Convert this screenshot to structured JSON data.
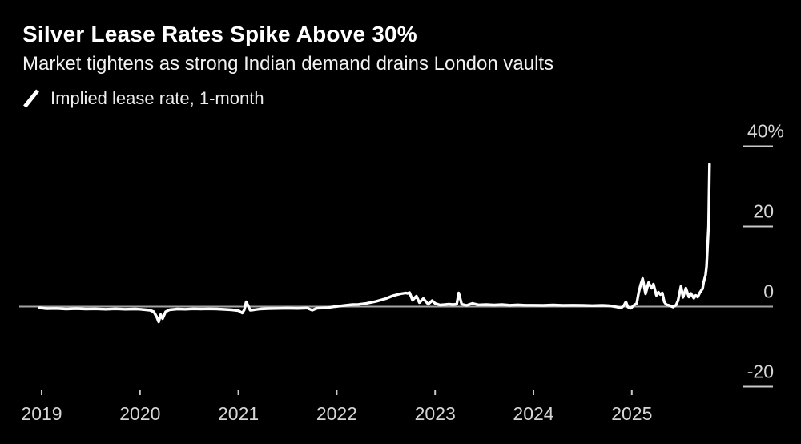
{
  "header": {
    "title": "Silver Lease Rates Spike Above 30%",
    "subtitle": "Market tightens as strong Indian demand drains London vaults",
    "legend": {
      "label": "Implied lease rate, 1-month",
      "series_color": "#ffffff"
    }
  },
  "colors": {
    "background": "#000000",
    "title_text": "#ffffff",
    "subtitle_text": "#f2f2f2",
    "legend_text": "#ededed",
    "axis_label": "#d6d6d6",
    "tick_line": "#c9c9c9",
    "zero_line": "#a3a3a3",
    "series_line": "#ffffff"
  },
  "chart_data": {
    "type": "line",
    "title": "Silver Lease Rates Spike Above 30%",
    "subtitle": "Market tightens as strong Indian demand drains London vaults",
    "unit": "%",
    "grid": false,
    "legend_position": "top-left",
    "axis_side": "right",
    "x_domain": [
      2018.95,
      2025.85
    ],
    "y_domain": [
      -24,
      44
    ],
    "zero_baseline": true,
    "x_axis": {
      "ticks": [
        {
          "value": 2019,
          "label": "2019"
        },
        {
          "value": 2020,
          "label": "2020"
        },
        {
          "value": 2021,
          "label": "2021"
        },
        {
          "value": 2022,
          "label": "2022"
        },
        {
          "value": 2023,
          "label": "2023"
        },
        {
          "value": 2024,
          "label": "2024"
        },
        {
          "value": 2025,
          "label": "2025"
        }
      ]
    },
    "y_axis": {
      "ticks": [
        {
          "value": 40,
          "label": "40%"
        },
        {
          "value": 20,
          "label": "20"
        },
        {
          "value": 0,
          "label": "0"
        },
        {
          "value": -20,
          "label": "-20"
        }
      ]
    },
    "series": [
      {
        "name": "Implied lease rate, 1-month",
        "color": "#ffffff",
        "points": [
          [
            2018.98,
            -0.3
          ],
          [
            2019.05,
            -0.5
          ],
          [
            2019.15,
            -0.45
          ],
          [
            2019.25,
            -0.6
          ],
          [
            2019.35,
            -0.5
          ],
          [
            2019.45,
            -0.6
          ],
          [
            2019.55,
            -0.55
          ],
          [
            2019.65,
            -0.65
          ],
          [
            2019.75,
            -0.55
          ],
          [
            2019.85,
            -0.65
          ],
          [
            2019.95,
            -0.6
          ],
          [
            2020.0,
            -0.65
          ],
          [
            2020.06,
            -0.8
          ],
          [
            2020.1,
            -0.9
          ],
          [
            2020.14,
            -1.3
          ],
          [
            2020.17,
            -2.6
          ],
          [
            2020.19,
            -3.8
          ],
          [
            2020.21,
            -2.0
          ],
          [
            2020.23,
            -3.0
          ],
          [
            2020.26,
            -1.3
          ],
          [
            2020.3,
            -0.8
          ],
          [
            2020.38,
            -0.6
          ],
          [
            2020.46,
            -0.65
          ],
          [
            2020.54,
            -0.55
          ],
          [
            2020.62,
            -0.6
          ],
          [
            2020.7,
            -0.55
          ],
          [
            2020.78,
            -0.6
          ],
          [
            2020.86,
            -0.7
          ],
          [
            2020.93,
            -0.8
          ],
          [
            2021.0,
            -1.0
          ],
          [
            2021.04,
            -1.6
          ],
          [
            2021.06,
            -0.8
          ],
          [
            2021.08,
            1.2
          ],
          [
            2021.1,
            0.2
          ],
          [
            2021.12,
            -0.9
          ],
          [
            2021.16,
            -0.8
          ],
          [
            2021.22,
            -0.6
          ],
          [
            2021.3,
            -0.5
          ],
          [
            2021.4,
            -0.45
          ],
          [
            2021.5,
            -0.4
          ],
          [
            2021.6,
            -0.45
          ],
          [
            2021.7,
            -0.35
          ],
          [
            2021.75,
            -0.9
          ],
          [
            2021.8,
            -0.4
          ],
          [
            2021.9,
            -0.3
          ],
          [
            2021.98,
            0.0
          ],
          [
            2022.08,
            0.3
          ],
          [
            2022.16,
            0.5
          ],
          [
            2022.22,
            0.55
          ],
          [
            2022.3,
            0.8
          ],
          [
            2022.4,
            1.3
          ],
          [
            2022.5,
            2.0
          ],
          [
            2022.57,
            2.7
          ],
          [
            2022.65,
            3.2
          ],
          [
            2022.7,
            3.4
          ],
          [
            2022.72,
            3.3
          ],
          [
            2022.74,
            3.5
          ],
          [
            2022.77,
            1.6
          ],
          [
            2022.81,
            2.6
          ],
          [
            2022.84,
            1.0
          ],
          [
            2022.88,
            2.0
          ],
          [
            2022.93,
            0.6
          ],
          [
            2022.97,
            1.5
          ],
          [
            2023.0,
            0.8
          ],
          [
            2023.05,
            0.4
          ],
          [
            2023.1,
            0.5
          ],
          [
            2023.14,
            0.6
          ],
          [
            2023.18,
            0.5
          ],
          [
            2023.22,
            0.6
          ],
          [
            2023.24,
            3.4
          ],
          [
            2023.27,
            0.6
          ],
          [
            2023.32,
            0.3
          ],
          [
            2023.38,
            0.8
          ],
          [
            2023.44,
            0.45
          ],
          [
            2023.52,
            0.5
          ],
          [
            2023.6,
            0.4
          ],
          [
            2023.68,
            0.5
          ],
          [
            2023.76,
            0.35
          ],
          [
            2023.84,
            0.45
          ],
          [
            2023.92,
            0.35
          ],
          [
            2024.0,
            0.35
          ],
          [
            2024.1,
            0.3
          ],
          [
            2024.2,
            0.4
          ],
          [
            2024.3,
            0.3
          ],
          [
            2024.4,
            0.35
          ],
          [
            2024.5,
            0.3
          ],
          [
            2024.6,
            0.25
          ],
          [
            2024.7,
            0.3
          ],
          [
            2024.78,
            0.2
          ],
          [
            2024.85,
            -0.1
          ],
          [
            2024.89,
            -0.35
          ],
          [
            2024.92,
            0.3
          ],
          [
            2024.94,
            1.2
          ],
          [
            2024.96,
            -0.1
          ],
          [
            2024.99,
            -0.4
          ],
          [
            2025.02,
            0.3
          ],
          [
            2025.05,
            0.8
          ],
          [
            2025.07,
            3.5
          ],
          [
            2025.09,
            5.5
          ],
          [
            2025.11,
            7.0
          ],
          [
            2025.14,
            3.2
          ],
          [
            2025.17,
            6.0
          ],
          [
            2025.2,
            4.6
          ],
          [
            2025.22,
            5.6
          ],
          [
            2025.25,
            2.8
          ],
          [
            2025.27,
            3.6
          ],
          [
            2025.29,
            3.0
          ],
          [
            2025.31,
            3.4
          ],
          [
            2025.33,
            1.2
          ],
          [
            2025.35,
            0.5
          ],
          [
            2025.38,
            0.3
          ],
          [
            2025.42,
            -0.1
          ],
          [
            2025.45,
            0.4
          ],
          [
            2025.47,
            1.5
          ],
          [
            2025.5,
            5.1
          ],
          [
            2025.52,
            2.3
          ],
          [
            2025.55,
            4.6
          ],
          [
            2025.58,
            2.4
          ],
          [
            2025.6,
            3.3
          ],
          [
            2025.63,
            2.1
          ],
          [
            2025.65,
            2.8
          ],
          [
            2025.67,
            2.4
          ],
          [
            2025.69,
            3.4
          ],
          [
            2025.72,
            4.5
          ],
          [
            2025.73,
            6.0
          ],
          [
            2025.75,
            7.9
          ],
          [
            2025.76,
            10.0
          ],
          [
            2025.78,
            20.0
          ],
          [
            2025.79,
            35.5
          ]
        ]
      }
    ]
  }
}
